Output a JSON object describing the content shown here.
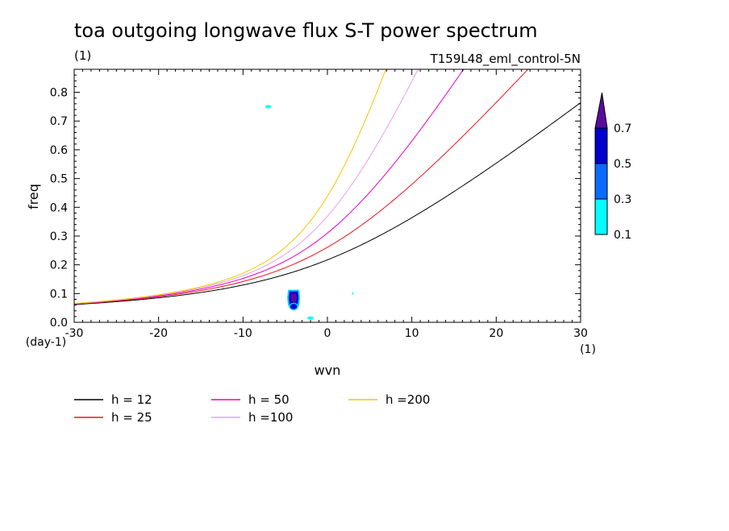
{
  "chart_data": {
    "type": "contour",
    "title": "toa outgoing longwave flux S-T power spectrum",
    "subtitle_left": "(1)",
    "subtitle_right": "T159L48_eml_control-5N",
    "xlabel": "wvn",
    "ylabel": "freq",
    "x_unit": "(1)",
    "y_unit": "(day-1)",
    "xlim": [
      -30,
      30
    ],
    "ylim": [
      0,
      0.88
    ],
    "x_ticks": [
      -30,
      -20,
      -10,
      0,
      10,
      20,
      30
    ],
    "x_tick_labels": [
      "-30",
      "-20",
      "-10",
      "0",
      "10",
      "20",
      "30"
    ],
    "y_ticks": [
      0,
      0.1,
      0.2,
      0.3,
      0.4,
      0.5,
      0.6,
      0.7,
      0.8
    ],
    "y_tick_labels": [
      "0.0",
      "0.1",
      "0.2",
      "0.3",
      "0.4",
      "0.5",
      "0.6",
      "0.7",
      "0.8"
    ],
    "contour_levels": [
      0.1,
      0.3,
      0.5,
      0.7
    ],
    "colorbar_labels": [
      "0.1",
      "0.3",
      "0.5",
      "0.7"
    ],
    "colorbar_colors": [
      "#00ffff",
      "#0a6bff",
      "#0000cc",
      "#5a0aa0"
    ],
    "blobs": [
      {
        "x": -7.0,
        "y": 0.75,
        "level": 0
      },
      {
        "x": -4.0,
        "y": 0.085,
        "level": 3
      },
      {
        "x": -4.0,
        "y": 0.055,
        "level": 2
      },
      {
        "x": -2.0,
        "y": 0.015,
        "level": 0
      },
      {
        "x": 3.0,
        "y": 0.1,
        "level": 0
      }
    ],
    "series": [
      {
        "name": "h = 12",
        "h": 12,
        "color": "#000000"
      },
      {
        "name": "h = 25",
        "h": 25,
        "color": "#e8141e"
      },
      {
        "name": "h = 50",
        "h": 50,
        "color": "#e600c8"
      },
      {
        "name": "h =100",
        "h": 100,
        "color": "#e6a0e6"
      },
      {
        "name": "h =200",
        "h": 200,
        "color": "#f0c800"
      }
    ]
  }
}
